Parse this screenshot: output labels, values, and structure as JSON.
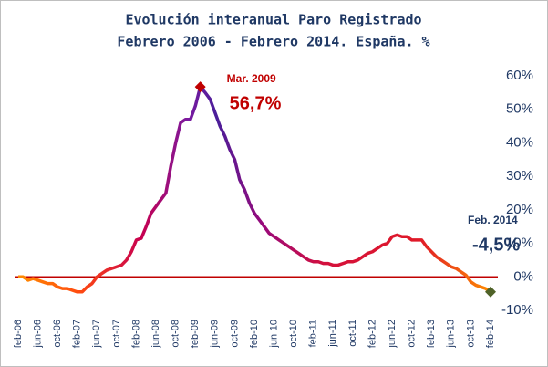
{
  "chart_data": {
    "type": "line",
    "title": "Evolución interanual Paro Registrado",
    "subtitle": "Febrero 2006 - Febrero 2014. España. %",
    "categories": [
      "feb-06",
      null,
      null,
      null,
      "jun-06",
      null,
      null,
      null,
      "oct-06",
      null,
      null,
      null,
      "feb-07",
      null,
      null,
      null,
      "jun-07",
      null,
      null,
      null,
      "oct-07",
      null,
      null,
      null,
      "feb-08",
      null,
      null,
      null,
      "jun-08",
      null,
      null,
      null,
      "oct-08",
      null,
      null,
      null,
      "feb-09",
      null,
      null,
      null,
      "jun-09",
      null,
      null,
      null,
      "oct-09",
      null,
      null,
      null,
      "feb-10",
      null,
      null,
      null,
      "jun-10",
      null,
      null,
      null,
      "oct-10",
      null,
      null,
      null,
      "feb-11",
      null,
      null,
      null,
      "jun-11",
      null,
      null,
      null,
      "oct-11",
      null,
      null,
      null,
      "feb-12",
      null,
      null,
      null,
      "jun-12",
      null,
      null,
      null,
      "oct-12",
      null,
      null,
      null,
      "feb-13",
      null,
      null,
      null,
      "jun-13",
      null,
      null,
      null,
      "oct-13",
      null,
      null,
      null,
      "feb-14"
    ],
    "values": [
      0,
      0,
      -1,
      -0.5,
      -1,
      -1.5,
      -2,
      -2,
      -3,
      -3.5,
      -3.5,
      -4,
      -4.5,
      -4.5,
      -3,
      -2,
      0,
      1,
      2,
      2.5,
      3,
      3.5,
      5,
      7.5,
      11,
      11.5,
      15,
      19,
      21,
      23,
      25,
      33,
      40,
      46,
      47,
      47,
      51,
      56.7,
      55,
      53,
      49,
      45,
      42,
      38,
      35,
      29,
      26,
      22,
      19,
      17,
      15,
      13,
      12,
      11,
      10,
      9,
      8,
      7,
      6,
      5,
      4.5,
      4.5,
      4,
      4,
      3.5,
      3.5,
      4,
      4.5,
      4.5,
      5,
      6,
      7,
      7.5,
      8.5,
      9.5,
      10,
      12,
      12.5,
      12,
      12,
      11,
      11,
      11,
      9,
      7.5,
      6,
      5,
      4,
      3,
      2.5,
      1.5,
      0.5,
      -1.5,
      -2.5,
      -3,
      -3.5,
      -4.5
    ],
    "value_labels": [
      null,
      null,
      null,
      null,
      null,
      null,
      null,
      null,
      null,
      null,
      null,
      null,
      null,
      null,
      null,
      null,
      null,
      null,
      null,
      null,
      null,
      null,
      null,
      null,
      null,
      null,
      null,
      null,
      null,
      null,
      null,
      null,
      null,
      null,
      null,
      null,
      null,
      "56,7%",
      null,
      null,
      null,
      null,
      null,
      null,
      null,
      null,
      null,
      null,
      null,
      null,
      null,
      null,
      null,
      null,
      null,
      null,
      null,
      null,
      null,
      null,
      null,
      null,
      null,
      null,
      null,
      null,
      null,
      null,
      null,
      null,
      null,
      null,
      null,
      null,
      null,
      null,
      null,
      null,
      null,
      null,
      null,
      null,
      null,
      null,
      null,
      null,
      null,
      null,
      null,
      null,
      null,
      null,
      null,
      null,
      null,
      null,
      "-4,5%"
    ],
    "annotations": [
      {
        "index": 37,
        "text": "Mar. 2009",
        "color": "#c00000"
      },
      {
        "index": 96,
        "text": "Feb. 2014",
        "color": "#1f3864"
      }
    ],
    "ylim": [
      -10,
      60
    ],
    "yticks": [
      {
        "value": -10,
        "label": "-10%"
      },
      {
        "value": 0,
        "label": "0%"
      },
      {
        "value": 10,
        "label": "10%"
      },
      {
        "value": 20,
        "label": "20%"
      },
      {
        "value": 30,
        "label": "30%"
      },
      {
        "value": 40,
        "label": "40%"
      },
      {
        "value": 50,
        "label": "50%"
      },
      {
        "value": 60,
        "label": "60%"
      }
    ],
    "zero_line_color": "#c00000",
    "marker_colors": [
      "#c00000",
      "#4f6228"
    ]
  }
}
